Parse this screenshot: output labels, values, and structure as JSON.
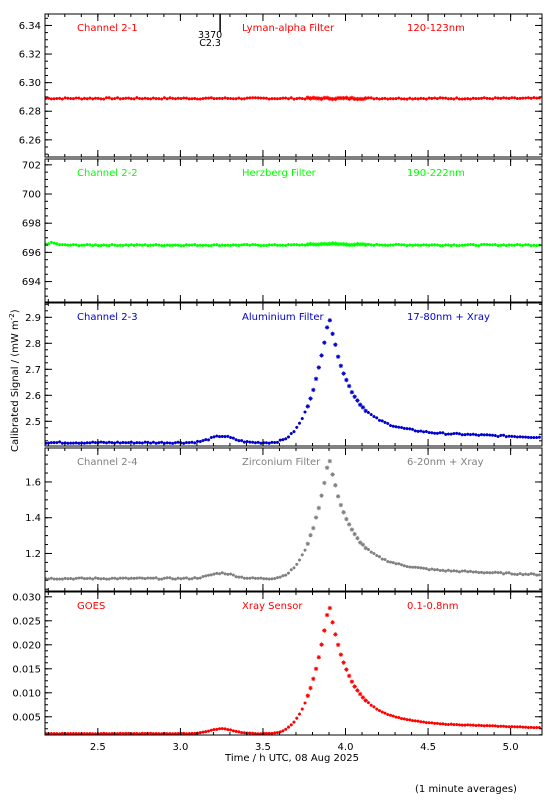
{
  "chart_data": {
    "type": "scatter",
    "x_axis_label": "Time / h UTC, 08 Aug 2025",
    "y_axis_label": "Calibrated Signal / (mW m",
    "y_axis_label_exp": "-2",
    "y_axis_label_close": ")",
    "footnote": "(1 minute averages)",
    "xlim": [
      2.18,
      5.19
    ],
    "x_ticks": [
      "2.5",
      "3.0",
      "3.5",
      "4.0",
      "4.5",
      "5.0"
    ],
    "x_tick_values": [
      2.5,
      3.0,
      3.5,
      4.0,
      4.5,
      5.0
    ],
    "marker": {
      "label_top": "3370",
      "label_bottom": "C2.3",
      "x": 3.18
    },
    "panels": [
      {
        "channel": "Channel 2-1",
        "filter": "Lyman-alpha Filter",
        "band": "120-123nm",
        "color": "#ff0000",
        "ylim": [
          6.248,
          6.348
        ],
        "y_ticks": [
          "6.26",
          "6.28",
          "6.30",
          "6.32",
          "6.34"
        ],
        "y_tick_values": [
          6.26,
          6.28,
          6.3,
          6.32,
          6.34
        ],
        "profile": {
          "base": 6.289,
          "flare": 0.0,
          "bumps": [],
          "noise": 0.0005,
          "slope": 0
        }
      },
      {
        "channel": "Channel 2-2",
        "filter": "Herzberg Filter",
        "band": "190-222nm",
        "color": "#00ff00",
        "ylim": [
          692.6,
          702.4
        ],
        "y_ticks": [
          "694",
          "696",
          "698",
          "700",
          "702"
        ],
        "y_tick_values": [
          694,
          696,
          698,
          700,
          702
        ],
        "profile": {
          "base": 696.5,
          "flare": 0.1,
          "bumps": [
            [
              2.22,
              0.15,
              0.04
            ]
          ],
          "noise": 0.04,
          "slope": 0
        }
      },
      {
        "channel": "Channel 2-3",
        "filter": "Aluminium Filter",
        "band": "17-80nm + Xray",
        "color": "#0000cc",
        "ylim": [
          2.405,
          2.955
        ],
        "y_ticks": [
          "2.5",
          "2.6",
          "2.7",
          "2.8",
          "2.9"
        ],
        "y_tick_values": [
          2.5,
          2.6,
          2.7,
          2.8,
          2.9
        ],
        "profile": {
          "base": 2.418,
          "flare": 0.49,
          "bumps": [
            [
              3.25,
              0.025,
              0.1
            ]
          ],
          "noise": 0.003,
          "slope": 0.015
        }
      },
      {
        "channel": "Channel 2-4",
        "filter": "Zirconium Filter",
        "band": "6-20nm + Xray",
        "color": "#808080",
        "ylim": [
          0.99,
          1.79
        ],
        "y_ticks": [
          "1.2",
          "1.4",
          "1.6"
        ],
        "y_tick_values": [
          1.2,
          1.4,
          1.6
        ],
        "profile": {
          "base": 1.06,
          "flare": 0.68,
          "bumps": [
            [
              3.25,
              0.03,
              0.1
            ]
          ],
          "noise": 0.004,
          "slope": 0.04
        }
      },
      {
        "channel": "GOES",
        "filter": "Xray Sensor",
        "band": "0.1-0.8nm",
        "color": "#ff0000",
        "ylim": [
          0.0012,
          0.031
        ],
        "y_ticks": [
          "0.005",
          "0.010",
          "0.015",
          "0.020",
          "0.025",
          "0.030"
        ],
        "y_tick_values": [
          0.005,
          0.01,
          0.015,
          0.02,
          0.025,
          0.03
        ],
        "profile": {
          "base": 0.0015,
          "flare": 0.0271,
          "bumps": [
            [
              3.25,
              0.001,
              0.1
            ]
          ],
          "noise": 5e-05,
          "slope": 0.0006
        }
      }
    ]
  }
}
